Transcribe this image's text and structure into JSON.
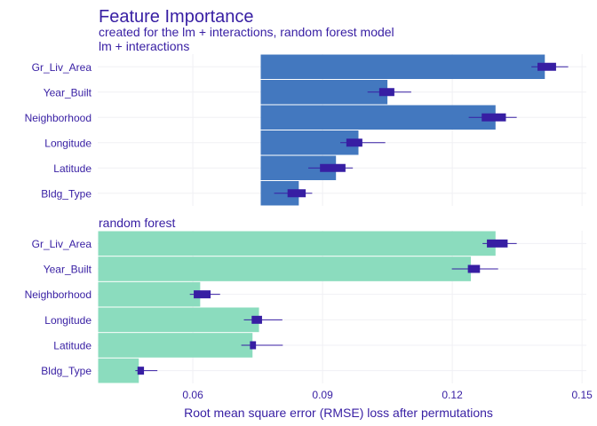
{
  "chart_data": {
    "type": "bar",
    "title": "Feature Importance",
    "subtitle": "created for the lm + interactions, random forest model",
    "xlabel": "Root mean square error (RMSE) loss after permutations",
    "xlim": [
      0.038,
      0.151
    ],
    "xticks": [
      0.06,
      0.09,
      0.12,
      0.15
    ],
    "xtick_labels": [
      "0.06",
      "0.09",
      "0.12",
      "0.15"
    ],
    "grid": true,
    "colors": {
      "lm": "#4378bf",
      "rf": "#8bdcbe",
      "boxplot": "#371ea3",
      "text": "#371ea3",
      "grid": "#f0f0f4"
    },
    "panels": [
      {
        "name": "lm + interactions",
        "baseline": 0.0757,
        "categories": [
          "Gr_Liv_Area",
          "Year_Built",
          "Neighborhood",
          "Longitude",
          "Latitude",
          "Bldg_Type"
        ],
        "values": [
          0.1414,
          0.105,
          0.13,
          0.0983,
          0.0931,
          0.0845
        ],
        "whisker_low": [
          0.1383,
          0.1004,
          0.1238,
          0.0941,
          0.0867,
          0.0788
        ],
        "box_low": [
          0.1397,
          0.1031,
          0.1268,
          0.0955,
          0.0894,
          0.0819
        ],
        "box_high": [
          0.144,
          0.1066,
          0.1324,
          0.0992,
          0.0953,
          0.0861
        ],
        "whisker_high": [
          0.1468,
          0.1105,
          0.1349,
          0.1045,
          0.097,
          0.0876
        ]
      },
      {
        "name": "random forest",
        "baseline": 0.0381,
        "categories": [
          "Gr_Liv_Area",
          "Year_Built",
          "Neighborhood",
          "Longitude",
          "Latitude",
          "Bldg_Type"
        ],
        "values": [
          0.13,
          0.1243,
          0.0617,
          0.0753,
          0.0738,
          0.0475
        ],
        "whisker_low": [
          0.127,
          0.1199,
          0.0593,
          0.0718,
          0.0712,
          0.0467
        ],
        "box_low": [
          0.128,
          0.1236,
          0.0602,
          0.0736,
          0.0732,
          0.0472
        ],
        "box_high": [
          0.1328,
          0.1264,
          0.0641,
          0.076,
          0.0746,
          0.0487
        ],
        "whisker_high": [
          0.1349,
          0.1306,
          0.0663,
          0.0807,
          0.0808,
          0.0518
        ]
      }
    ]
  }
}
